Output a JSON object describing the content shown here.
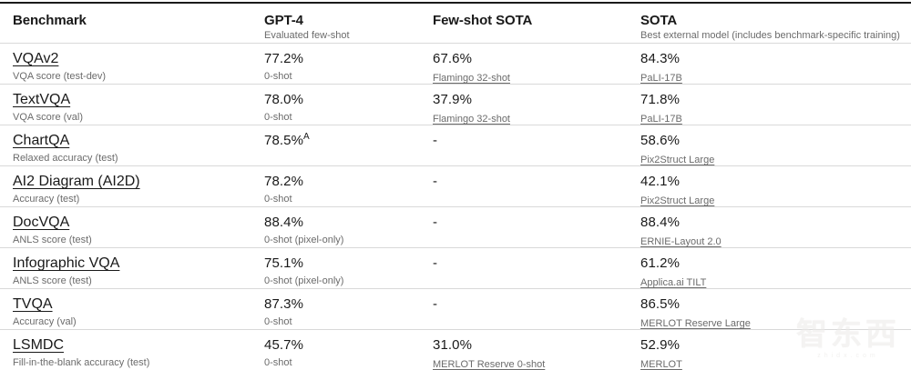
{
  "table": {
    "columns": [
      {
        "label": "Benchmark",
        "sublabel": ""
      },
      {
        "label": "GPT-4",
        "sublabel": "Evaluated few-shot"
      },
      {
        "label": "Few-shot SOTA",
        "sublabel": ""
      },
      {
        "label": "SOTA",
        "sublabel": "Best external model (includes benchmark-specific training)"
      }
    ],
    "rows": [
      {
        "benchmark": "VQAv2",
        "metric": "VQA score (test-dev)",
        "gpt4_value": "77.2%",
        "gpt4_sup": "",
        "gpt4_note": "0-shot",
        "fewshot_value": "67.6%",
        "fewshot_model": "Flamingo 32-shot",
        "sota_value": "84.3%",
        "sota_model": "PaLI-17B"
      },
      {
        "benchmark": "TextVQA",
        "metric": "VQA score (val)",
        "gpt4_value": "78.0%",
        "gpt4_sup": "",
        "gpt4_note": "0-shot",
        "fewshot_value": "37.9%",
        "fewshot_model": "Flamingo 32-shot",
        "sota_value": "71.8%",
        "sota_model": "PaLI-17B"
      },
      {
        "benchmark": "ChartQA",
        "metric": "Relaxed accuracy (test)",
        "gpt4_value": "78.5%",
        "gpt4_sup": "A",
        "gpt4_note": "",
        "fewshot_value": "-",
        "fewshot_model": "",
        "sota_value": "58.6%",
        "sota_model": "Pix2Struct Large"
      },
      {
        "benchmark": "AI2 Diagram (AI2D)",
        "metric": "Accuracy (test)",
        "gpt4_value": "78.2%",
        "gpt4_sup": "",
        "gpt4_note": "0-shot",
        "fewshot_value": "-",
        "fewshot_model": "",
        "sota_value": "42.1%",
        "sota_model": "Pix2Struct Large"
      },
      {
        "benchmark": "DocVQA",
        "metric": "ANLS score (test)",
        "gpt4_value": "88.4%",
        "gpt4_sup": "",
        "gpt4_note": "0-shot (pixel-only)",
        "fewshot_value": "-",
        "fewshot_model": "",
        "sota_value": "88.4%",
        "sota_model": "ERNIE-Layout 2.0"
      },
      {
        "benchmark": "Infographic VQA",
        "metric": "ANLS score (test)",
        "gpt4_value": "75.1%",
        "gpt4_sup": "",
        "gpt4_note": "0-shot (pixel-only)",
        "fewshot_value": "-",
        "fewshot_model": "",
        "sota_value": "61.2%",
        "sota_model": "Applica.ai TILT"
      },
      {
        "benchmark": "TVQA",
        "metric": "Accuracy (val)",
        "gpt4_value": "87.3%",
        "gpt4_sup": "",
        "gpt4_note": "0-shot",
        "fewshot_value": "-",
        "fewshot_model": "",
        "sota_value": "86.5%",
        "sota_model": "MERLOT Reserve Large"
      },
      {
        "benchmark": "LSMDC",
        "metric": "Fill-in-the-blank accuracy (test)",
        "gpt4_value": "45.7%",
        "gpt4_sup": "",
        "gpt4_note": "0-shot",
        "fewshot_value": "31.0%",
        "fewshot_model": "MERLOT Reserve 0-shot",
        "sota_value": "52.9%",
        "sota_model": "MERLOT"
      }
    ]
  },
  "watermark": {
    "logo": "智东西",
    "caption": "zhidx.com"
  }
}
